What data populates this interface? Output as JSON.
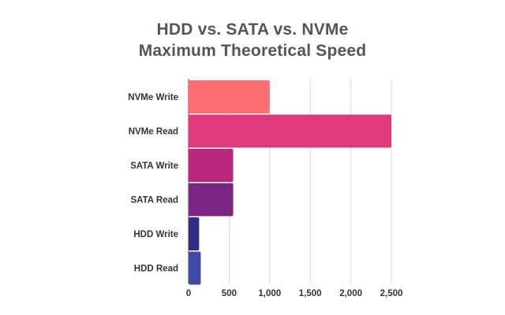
{
  "chart_data": {
    "type": "bar",
    "orientation": "horizontal",
    "title": [
      "HDD vs. SATA vs. NVMe",
      "Maximum Theoretical Speed"
    ],
    "categories": [
      "NVMe Write",
      "NVMe Read",
      "SATA Write",
      "SATA Read",
      "HDD Write",
      "HDD Read"
    ],
    "values": [
      1000,
      2500,
      550,
      550,
      130,
      150
    ],
    "colors": [
      "#fc6e72",
      "#e03a7b",
      "#b9277f",
      "#7b2584",
      "#2f2d86",
      "#3f4aa6"
    ],
    "xlim": [
      0,
      2500
    ],
    "xticks": [
      0,
      500,
      1000,
      1500,
      2000,
      2500
    ],
    "xtick_labels": [
      "0",
      "500",
      "1,000",
      "1,500",
      "2,000",
      "2,500"
    ],
    "grid": true,
    "xlabel": "",
    "ylabel": ""
  }
}
